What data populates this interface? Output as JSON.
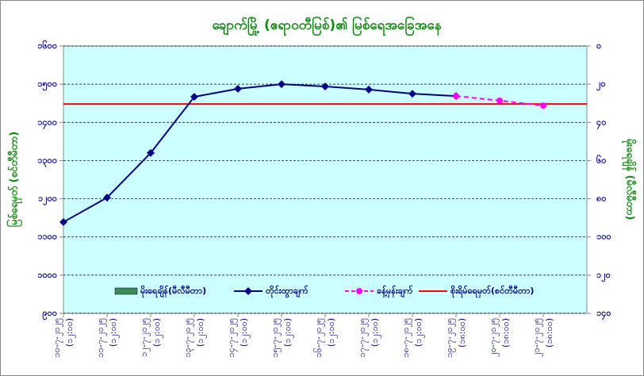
{
  "chart_data": {
    "type": "line",
    "title": "ချောက်မြို့ (ဧရာဝတီမြစ်)၏ မြစ်ရေအခြေအနေ",
    "ylabel": "မြစ်ရေမှတ် (စင်တီမီတာ)",
    "y2label": "မိုးရေချိန် (မီလီမီတာ)",
    "categories": [
      [
        "၁၀-၇-၂၀၂၅",
        "(၁၂:၀၀)"
      ],
      [
        "၁၁-၇-၂၀၂၅",
        "(၁၂:၀၀)"
      ],
      [
        "၁၂-၇-၂၀၂၅",
        "(၁၂:၀၀)"
      ],
      [
        "၁၃-၇-၂၀၂၅",
        "(၁၂:၀၀)"
      ],
      [
        "၁၄-၇-၂၀၂၅",
        "(၁၂:၀၀)"
      ],
      [
        "၁၅-၇-၂၀၂၅",
        "(၁၂:၀၀)"
      ],
      [
        "၁၆-၇-၂၀၂၅",
        "(၁၂:၀၀)"
      ],
      [
        "၁၇-၇-၂၀၂၅",
        "(၁၂:၀၀)"
      ],
      [
        "၁၈-၇-၂၀၂၅",
        "(၁၂:၀၀)"
      ],
      [
        "၁၉-၇-၂၀၂၅",
        "(၁၈:၀၀)"
      ],
      [
        "၂၀-၇-၂၀၂၅",
        "(၁၈:၀၀)"
      ],
      [
        "၂၁-၇-၂၀၂၅",
        "(၁၈:၀၀)"
      ]
    ],
    "series": [
      {
        "name": "မိုးရေချိန်(မီလီမီတာ)",
        "color": "#3a8a5a",
        "kind": "bar",
        "axis": "y2",
        "values": [
          null,
          null,
          null,
          null,
          null,
          null,
          null,
          null,
          null,
          null,
          null,
          null
        ]
      },
      {
        "name": "တိုင်းထွာချက်",
        "color": "#000080",
        "kind": "line",
        "values": [
          1139,
          1203,
          1320,
          1467,
          1488,
          1500,
          1494,
          1486,
          1475,
          1469,
          null,
          null
        ]
      },
      {
        "name": "ခန့်မှန်းချက်",
        "color": "#ff00ff",
        "kind": "dashed",
        "values": [
          null,
          null,
          null,
          null,
          null,
          null,
          null,
          null,
          null,
          1469,
          1457,
          1444
        ]
      }
    ],
    "threshold": {
      "name": "စိုးရိမ်ရေမှတ်(စင်တီမီတာ)",
      "value": 1448,
      "color": "#ff0000"
    },
    "ylim": [
      900,
      1600
    ],
    "yticks": [
      {
        "value": 900,
        "label": "၉၀၀"
      },
      {
        "value": 1000,
        "label": "၁၀၀၀"
      },
      {
        "value": 1100,
        "label": "၁၁၀၀"
      },
      {
        "value": 1200,
        "label": "၁၂၀၀"
      },
      {
        "value": 1300,
        "label": "၁၃၀၀"
      },
      {
        "value": 1400,
        "label": "၁၄၀၀"
      },
      {
        "value": 1500,
        "label": "၁၅၀၀"
      },
      {
        "value": 1600,
        "label": "၁၆၀၀"
      }
    ],
    "y2lim": [
      140,
      0
    ],
    "y2ticks": [
      {
        "value": 0,
        "label": "၀"
      },
      {
        "value": 20,
        "label": "၂၀"
      },
      {
        "value": 40,
        "label": "၄၀"
      },
      {
        "value": 60,
        "label": "၆၀"
      },
      {
        "value": 80,
        "label": "၈၀"
      },
      {
        "value": 100,
        "label": "၁၀၀"
      },
      {
        "value": 120,
        "label": "၁၂၀"
      },
      {
        "value": 140,
        "label": "၁၄၀"
      }
    ],
    "grid": true
  }
}
